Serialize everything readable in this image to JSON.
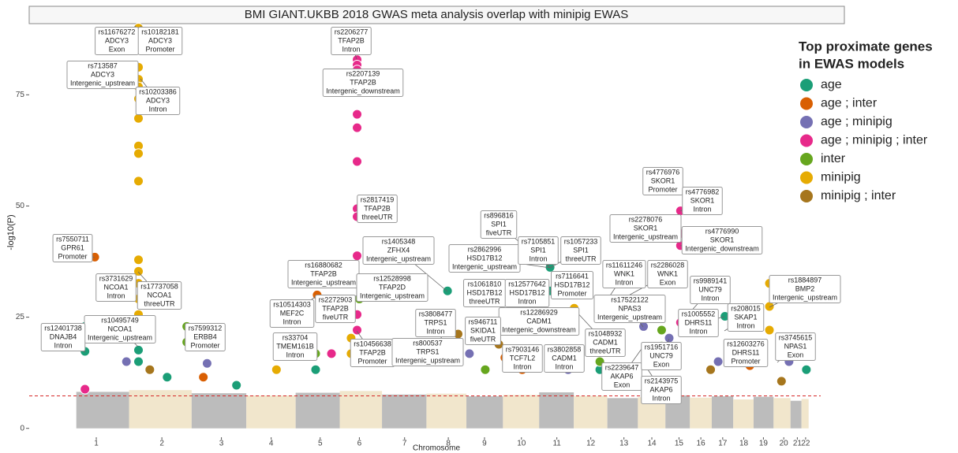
{
  "chart_data": {
    "type": "manhattan",
    "title": "BMI GIANT.UKBB 2018 GWAS meta analysis overlap with minipig EWAS",
    "xlabel": "Chromosome",
    "ylabel": "-log10(P)",
    "legend_title": [
      "Top proximate genes",
      "in EWAS models"
    ],
    "legend_position": "right",
    "xlim": [
      -4,
      101
    ],
    "ylim": [
      -2,
      91
    ],
    "yticks": [
      0,
      25,
      50,
      75
    ],
    "xticks": [
      {
        "value": 4.9,
        "label": "1"
      },
      {
        "value": 13.6,
        "label": "2"
      },
      {
        "value": 21.5,
        "label": "3"
      },
      {
        "value": 28.1,
        "label": "4"
      },
      {
        "value": 34.6,
        "label": "5"
      },
      {
        "value": 39.8,
        "label": "6"
      },
      {
        "value": 45.8,
        "label": "7"
      },
      {
        "value": 51.6,
        "label": "8"
      },
      {
        "value": 56.4,
        "label": "9"
      },
      {
        "value": 61.3,
        "label": "10"
      },
      {
        "value": 66.0,
        "label": "11"
      },
      {
        "value": 70.5,
        "label": "12"
      },
      {
        "value": 74.9,
        "label": "13"
      },
      {
        "value": 78.6,
        "label": "14"
      },
      {
        "value": 82.2,
        "label": "15"
      },
      {
        "value": 85.1,
        "label": "16"
      },
      {
        "value": 88.0,
        "label": "17"
      },
      {
        "value": 90.8,
        "label": "18"
      },
      {
        "value": 93.4,
        "label": "19"
      },
      {
        "value": 96.1,
        "label": "20"
      },
      {
        "value": 97.9,
        "label": "21"
      },
      {
        "value": 99.0,
        "label": "22"
      }
    ],
    "threshold": {
      "value": 7.3,
      "color": "#d62728"
    },
    "background": {
      "colors": [
        "#b5b5b5",
        "#efe3c6"
      ],
      "values": [
        8.2,
        8.6,
        7.9,
        7.4,
        8.0,
        8.4,
        7.6,
        7.8,
        7.2,
        7.5,
        8.1,
        7.3,
        6.8,
        7.0,
        7.4,
        6.9,
        7.2,
        6.5,
        7.1,
        6.8,
        6.2,
        6.6
      ]
    },
    "series": [
      {
        "name": "age",
        "color": "#1b9e77",
        "x": [
          3.4,
          3.4,
          10.5,
          10.5,
          14.3,
          51.5,
          51.5,
          65.1,
          65.1,
          88.3,
          99.1,
          99.1,
          71.7,
          34.0,
          23.5
        ],
        "values": [
          17.3,
          22.9,
          17.6,
          15,
          11.5,
          30.9,
          24.7,
          36.2,
          30.9,
          25.2,
          18.5,
          13.2,
          13.2,
          13.2,
          9.7
        ]
      },
      {
        "name": "age ; inter",
        "color": "#d95f02",
        "x": [
          4.7,
          34.2,
          52.9,
          59.1,
          61.4,
          19.1,
          91.6
        ],
        "values": [
          38.5,
          30,
          18.5,
          15.9,
          13.2,
          11.5,
          14.1
        ]
      },
      {
        "name": "age ; minipig",
        "color": "#7570b3",
        "x": [
          8.9,
          19.6,
          54.4,
          67.5,
          77.5,
          80.9,
          87.4,
          96.8,
          79.0
        ],
        "values": [
          15,
          14.6,
          16.8,
          13.2,
          22.9,
          20.3,
          15,
          15,
          15.9
        ]
      },
      {
        "name": "age ; minipig ; inter",
        "color": "#e7298a",
        "x": [
          39.5,
          39.5,
          39.5,
          39.5,
          39.5,
          39.5,
          39.5,
          39.5,
          39.5,
          39.5,
          39.5,
          39.5,
          82.4,
          82.4,
          82.4,
          82.4,
          82.4,
          3.4,
          36.1
        ],
        "values": [
          82.9,
          81.7,
          80.6,
          70.6,
          67.6,
          60,
          49.4,
          47.6,
          38.8,
          32.6,
          25.6,
          22.1,
          53.5,
          48.9,
          43.8,
          41.1,
          23.8,
          8.8,
          16.8
        ]
      },
      {
        "name": "inter",
        "color": "#66a61e",
        "x": [
          16.9,
          16.9,
          34.0,
          39.8,
          79.9,
          79.9,
          71.7,
          56.5
        ],
        "values": [
          22.9,
          19.4,
          16.8,
          29.1,
          22.1,
          18.5,
          15,
          13.2
        ]
      },
      {
        "name": "minipig",
        "color": "#e6ab02",
        "x": [
          10.5,
          10.5,
          10.5,
          10.5,
          10.5,
          10.5,
          10.5,
          10.5,
          10.5,
          10.5,
          10.5,
          10.5,
          10.5,
          10.5,
          38.7,
          38.7,
          94.2,
          94.2,
          94.2,
          68.3,
          48.7,
          28.8
        ],
        "values": [
          90,
          81.2,
          78.5,
          76.8,
          74.1,
          69.7,
          63.5,
          61.8,
          55.6,
          37.9,
          35.3,
          32.6,
          29.1,
          25.6,
          20.3,
          16.8,
          32.6,
          27.4,
          22.1,
          27,
          15,
          13.2
        ]
      },
      {
        "name": "minipig ; inter",
        "color": "#a6761d",
        "x": [
          58.3,
          52.9,
          65.4,
          12.0,
          86.4,
          95.8
        ],
        "values": [
          18.9,
          21.2,
          15.9,
          13.2,
          13.2,
          10.6
        ]
      }
    ],
    "annotations": [
      [
        "rs11676272",
        "ADCY3",
        "Exon"
      ],
      [
        "rs10182181",
        "ADCY3",
        "Promoter"
      ],
      [
        "rs713587",
        "ADCY3",
        "Intergenic_upstream"
      ],
      [
        "rs10203386",
        "ADCY3",
        "Intron"
      ],
      [
        "rs2206277",
        "TFAP2B",
        "Intron"
      ],
      [
        "rs2207139",
        "TFAP2B",
        "Intergenic_downstream"
      ],
      [
        "rs2817419",
        "TFAP2B",
        "threeUTR"
      ],
      [
        "rs7550711",
        "GPR61",
        "Promoter"
      ],
      [
        "rs3731629",
        "NCOA1",
        "Intron"
      ],
      [
        "rs17737058",
        "NCOA1",
        "threeUTR"
      ],
      [
        "rs10495749",
        "NCOA1",
        "Intergenic_upstream"
      ],
      [
        "rs12401738",
        "DNAJB4",
        "Intron"
      ],
      [
        "rs7599312",
        "ERBB4",
        "Promoter"
      ],
      [
        "rs16880682",
        "TFAP2B",
        "Intergenic_upstream"
      ],
      [
        "rs10514303",
        "MEF2C",
        "Intron"
      ],
      [
        "rs2272903",
        "TFAP2B",
        "fiveUTR"
      ],
      [
        "rs33704",
        "TMEM161B",
        "Intron"
      ],
      [
        "rs10456638",
        "TFAP2B",
        "Promoter"
      ],
      [
        "rs1405348",
        "ZFHX4",
        "Intergenic_upstream"
      ],
      [
        "rs12528998",
        "TFAP2D",
        "Intergenic_upstream"
      ],
      [
        "rs3808477",
        "TRPS1",
        "Intron"
      ],
      [
        "rs800537",
        "TRPS1",
        "Intergenic_upstream"
      ],
      [
        "rs2862996",
        "HSD17B12",
        "Intergenic_upstream"
      ],
      [
        "rs896816",
        "SPI1",
        "fiveUTR"
      ],
      [
        "rs7105851",
        "SPI1",
        "Intron"
      ],
      [
        "rs1057233",
        "SPI1",
        "threeUTR"
      ],
      [
        "rs1061810",
        "HSD17B12",
        "threeUTR"
      ],
      [
        "rs12577642",
        "HSD17B12",
        "Intron"
      ],
      [
        "rs7116641",
        "HSD17B12",
        "Promoter"
      ],
      [
        "rs12286929",
        "CADM1",
        "Intergenic_downstream"
      ],
      [
        "rs946711",
        "SKIDA1",
        "fiveUTR"
      ],
      [
        "rs7903146",
        "TCF7L2",
        "Intron"
      ],
      [
        "rs3802858",
        "CADM1",
        "Intron"
      ],
      [
        "rs11611246",
        "WNK1",
        "Intron"
      ],
      [
        "rs2286028",
        "WNK1",
        "Exon"
      ],
      [
        "rs17522122",
        "NPAS3",
        "Intergenic_upstream"
      ],
      [
        "rs1048932",
        "CADM1",
        "threeUTR"
      ],
      [
        "rs2239647",
        "AKAP6",
        "Exon"
      ],
      [
        "rs1951716",
        "UNC79",
        "Exon"
      ],
      [
        "rs2143975",
        "AKAP6",
        "Intron"
      ],
      [
        "rs1005552",
        "DHRS11",
        "Intron"
      ],
      [
        "rs9989141",
        "UNC79",
        "Intron"
      ],
      [
        "rs4776976",
        "SKOR1",
        "Promoter"
      ],
      [
        "rs4776982",
        "SKOR1",
        "Intron"
      ],
      [
        "rs2278076",
        "SKOR1",
        "Intergenic_upstream"
      ],
      [
        "rs4776990",
        "SKOR1",
        "Intergenic_downstream"
      ],
      [
        "rs12603276",
        "DHRS11",
        "Promoter"
      ],
      [
        "rs208015",
        "SKAP1",
        "Intron"
      ],
      [
        "rs1884897",
        "BMP2",
        "Intergenic_upstream"
      ],
      [
        "rs3745615",
        "NPAS1",
        "Exon"
      ]
    ]
  }
}
